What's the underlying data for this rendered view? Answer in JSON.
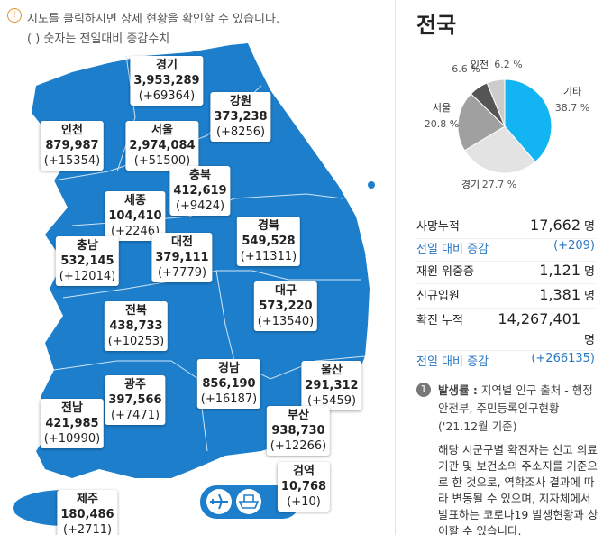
{
  "notice": {
    "line1": "시도를 클릭하시면 상세 현황을 확인할 수 있습니다.",
    "line2": "( ) 숫자는 전일대비 증감수치"
  },
  "regions": [
    {
      "name": "경기",
      "count": "3,953,289",
      "change": "(+69364)"
    },
    {
      "name": "인천",
      "count": "879,987",
      "change": "(+15354)"
    },
    {
      "name": "서울",
      "count": "2,974,084",
      "change": "(+51500)"
    },
    {
      "name": "강원",
      "count": "373,238",
      "change": "(+8256)"
    },
    {
      "name": "충북",
      "count": "412,619",
      "change": "(+9424)"
    },
    {
      "name": "세종",
      "count": "104,410",
      "change": "(+2246)"
    },
    {
      "name": "충남",
      "count": "532,145",
      "change": "(+12014)"
    },
    {
      "name": "대전",
      "count": "379,111",
      "change": "(+7779)"
    },
    {
      "name": "경북",
      "count": "549,528",
      "change": "(+11311)"
    },
    {
      "name": "대구",
      "count": "573,220",
      "change": "(+13540)"
    },
    {
      "name": "전북",
      "count": "438,733",
      "change": "(+10253)"
    },
    {
      "name": "광주",
      "count": "397,566",
      "change": "(+7471)"
    },
    {
      "name": "경남",
      "count": "856,190",
      "change": "(+16187)"
    },
    {
      "name": "울산",
      "count": "291,312",
      "change": "(+5459)"
    },
    {
      "name": "전남",
      "count": "421,985",
      "change": "(+10990)"
    },
    {
      "name": "부산",
      "count": "938,730",
      "change": "(+12266)"
    },
    {
      "name": "검역",
      "count": "10,768",
      "change": "(+10)"
    },
    {
      "name": "제주",
      "count": "180,486",
      "change": "(+2711)"
    }
  ],
  "panel": {
    "title": "전국",
    "pie": {
      "type": "pie",
      "labels": [
        "기타",
        "경기",
        "서울",
        null,
        "인천"
      ],
      "values": [
        38.7,
        27.7,
        20.8,
        6.6,
        6.2
      ],
      "value_labels": [
        "38.7 %",
        "27.7 %",
        "20.8 %",
        "6.6 %",
        "6.2 %"
      ],
      "colors": [
        "#12b5f2",
        "#e3e3e3",
        "#a0a0a0",
        "#555555",
        "#cccccc"
      ]
    },
    "stats": [
      {
        "label": "사망누적",
        "value": "17,662",
        "unit": "명"
      },
      {
        "label": "전일 대비 증감",
        "value": "(+209)"
      },
      {
        "label": "재원 위중증",
        "value": "1,121",
        "unit": "명"
      },
      {
        "label": "신규입원",
        "value": "1,381",
        "unit": "명"
      },
      {
        "label": "확진 누적",
        "value": "14,267,401",
        "unit": "명"
      },
      {
        "label": "전일 대비 증감",
        "value": "(+266135)"
      }
    ],
    "note": {
      "number": "1",
      "head": "발생률 :",
      "source": "지역별 인구 출처 - 행정안전부, 주민등록인구현황 ('21.12월 기준)",
      "body": "해당 시군구별 확진자는 신고 의료기관 및 보건소의 주소지를 기준으로 한 것으로, 역학조사 결과에 따라 변동될 수 있으며, 지자체에서 발표하는 코로나19 발생현황과 상이할 수 있습니다."
    }
  }
}
